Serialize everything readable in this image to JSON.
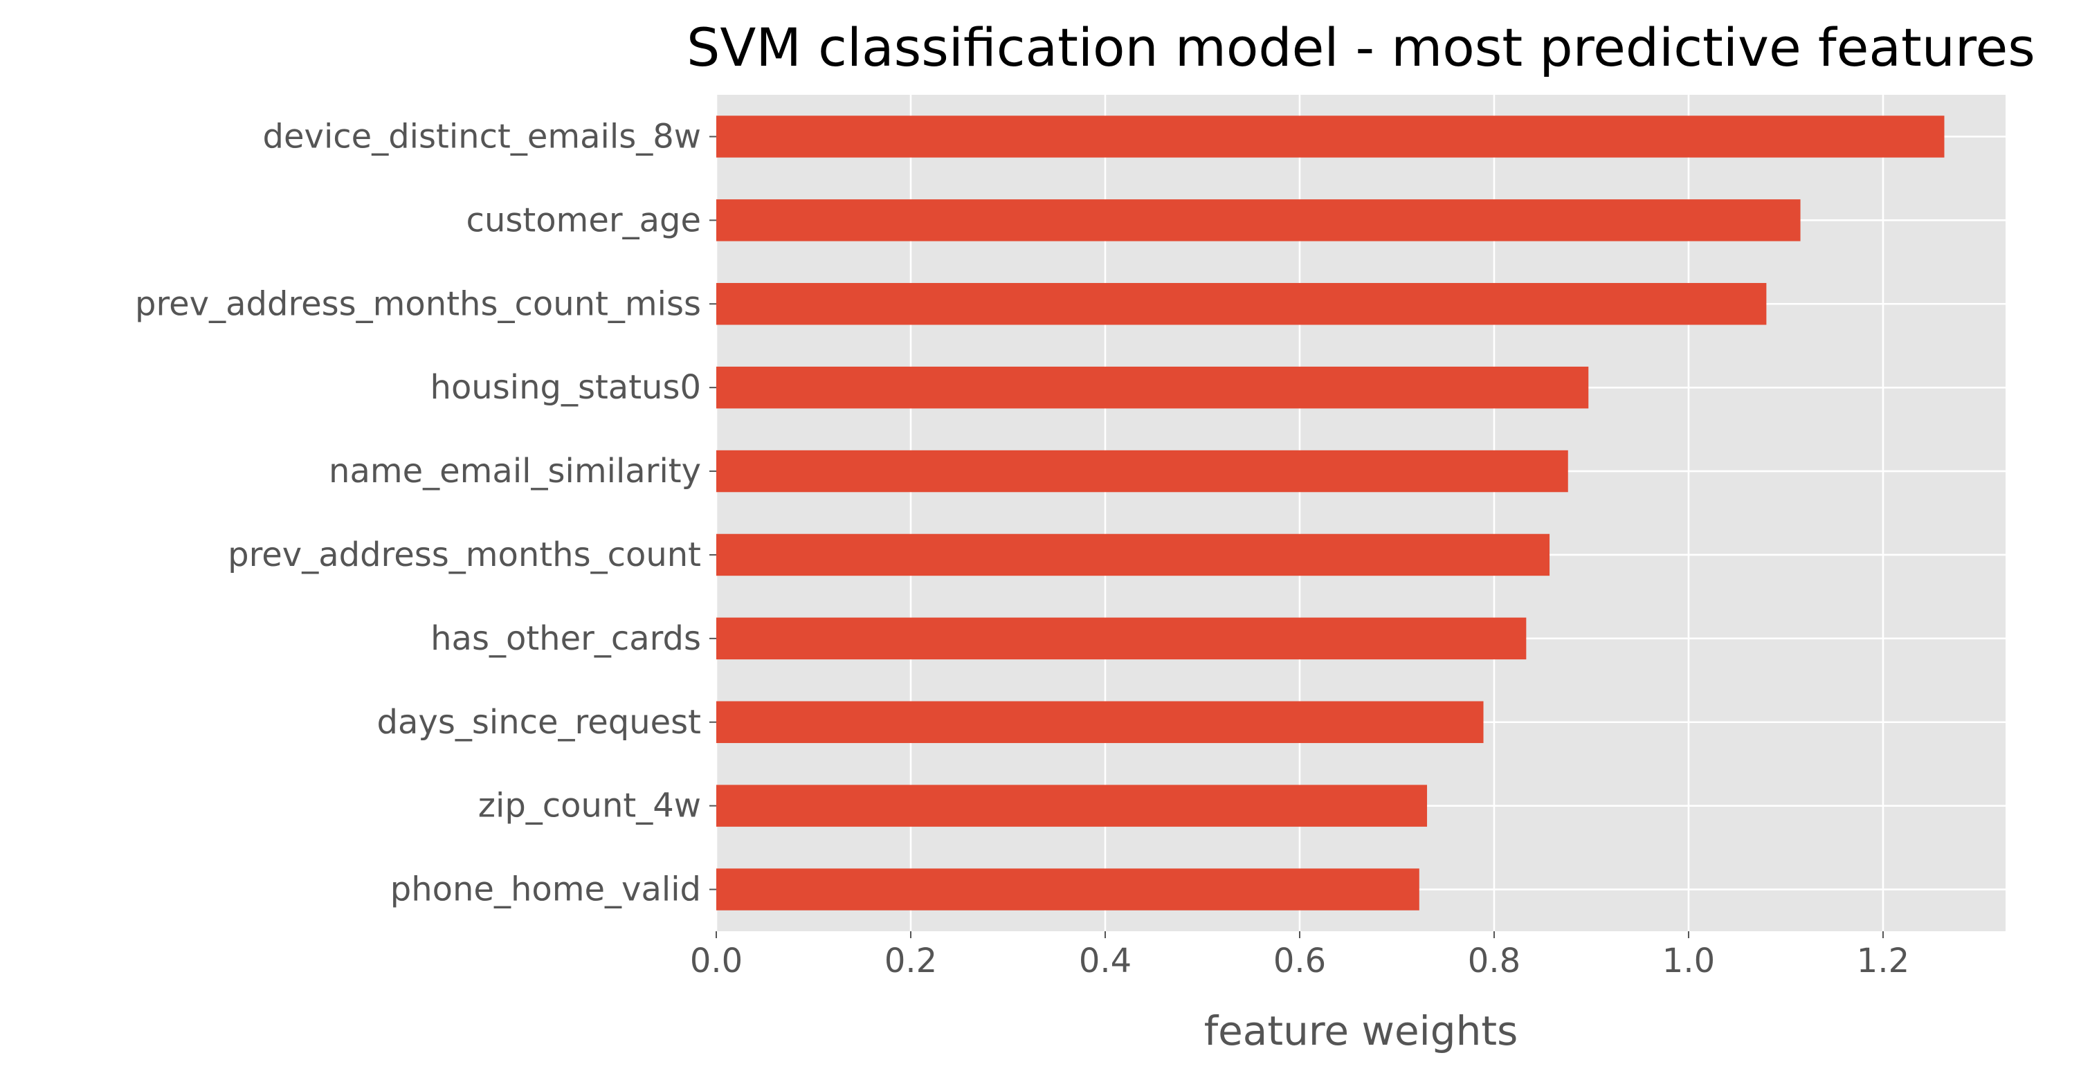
{
  "chart_data": {
    "type": "bar",
    "orientation": "horizontal",
    "title": "SVM classification model - most predictive features",
    "xlabel": "feature weights",
    "ylabel": "",
    "categories": [
      "device_distinct_emails_8w",
      "customer_age",
      "prev_address_months_count_miss",
      "housing_status0",
      "name_email_similarity",
      "prev_address_months_count",
      "has_other_cards",
      "days_since_request",
      "zip_count_4w",
      "phone_home_valid"
    ],
    "values": [
      1.263,
      1.115,
      1.08,
      0.897,
      0.876,
      0.857,
      0.833,
      0.789,
      0.731,
      0.723
    ],
    "xlim": [
      0,
      1.326
    ],
    "xticks": [
      0.0,
      0.2,
      0.4,
      0.6,
      0.8,
      1.0,
      1.2
    ],
    "xtick_labels": [
      "0.0",
      "0.2",
      "0.4",
      "0.6",
      "0.8",
      "1.0",
      "1.2"
    ],
    "grid": true,
    "legend": false,
    "colors": {
      "bar": "#E24A33",
      "plot_background": "#E5E5E5",
      "grid": "#FFFFFF",
      "tick_text": "#555555",
      "title_text": "#000000"
    }
  }
}
